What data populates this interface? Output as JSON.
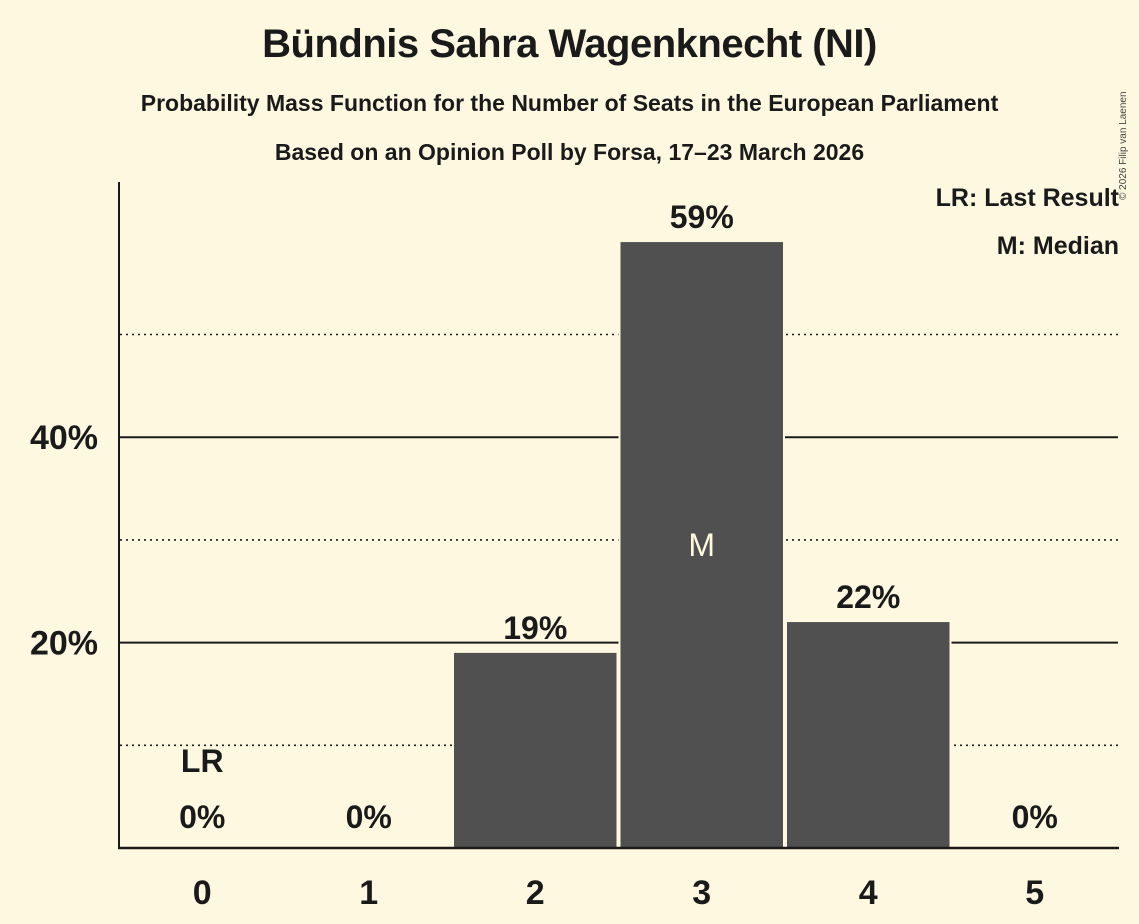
{
  "header": {
    "title": "Bündnis Sahra Wagenknecht (NI)",
    "subtitle": "Probability Mass Function for the Number of Seats in the European Parliament",
    "subtitle2": "Based on an Opinion Poll by Forsa, 17–23 March 2026",
    "copyright": "© 2026 Filip van Laenen"
  },
  "legend": {
    "last_result": "LR: Last Result",
    "median": "M: Median"
  },
  "colors": {
    "background": "#FFF8E1",
    "bar": "#505050",
    "text": "#1a1a1a",
    "median_label": "#FFF8E1"
  },
  "chart_data": {
    "type": "bar",
    "title": "Bündnis Sahra Wagenknecht (NI)",
    "subtitle": "Probability Mass Function for the Number of Seats in the European Parliament",
    "xlabel": "",
    "ylabel": "",
    "categories": [
      "0",
      "1",
      "2",
      "3",
      "4",
      "5"
    ],
    "values": [
      0,
      0,
      19,
      59,
      22,
      0
    ],
    "value_labels": [
      "0%",
      "0%",
      "19%",
      "59%",
      "22%",
      "0%"
    ],
    "ylim": [
      0,
      65
    ],
    "yticks": [
      20,
      40
    ],
    "ytick_labels": [
      "20%",
      "40%"
    ],
    "minor_gridlines_dotted": [
      10,
      30,
      50
    ],
    "grid": true,
    "annotations": [
      {
        "category": "0",
        "label": "LR",
        "meaning": "Last Result"
      },
      {
        "category": "3",
        "label": "M",
        "meaning": "Median"
      }
    ],
    "legend_position": "top-right"
  },
  "annotations": {
    "lr": "LR",
    "median": "M"
  }
}
